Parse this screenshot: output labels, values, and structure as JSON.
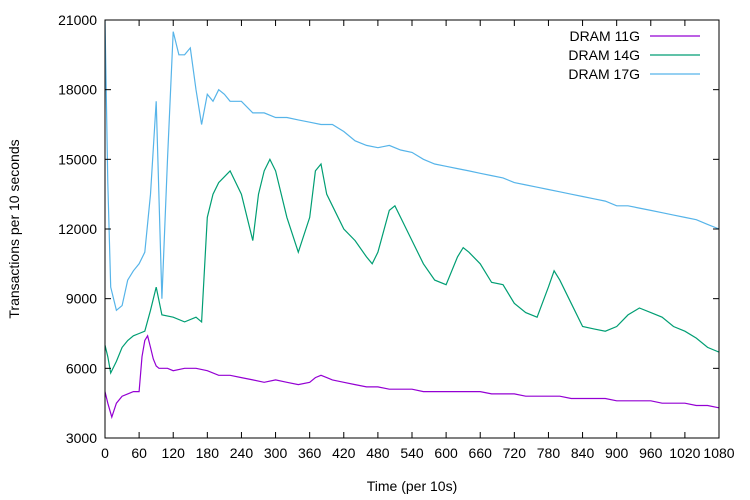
{
  "chart_data": {
    "type": "line",
    "xlabel": "Time (per 10s)",
    "ylabel": "Transactions per 10 seconds",
    "xlim": [
      0,
      1080
    ],
    "ylim": [
      3000,
      21000
    ],
    "xticks": [
      "0",
      "60",
      "120",
      "180",
      "240",
      "300",
      "360",
      "420",
      "480",
      "540",
      "600",
      "660",
      "720",
      "780",
      "840",
      "900",
      "960",
      "1020",
      "1080"
    ],
    "yticks": [
      "3000",
      "6000",
      "9000",
      "12000",
      "15000",
      "18000",
      "21000"
    ],
    "grid": false,
    "legend_position": "top-right",
    "series": [
      {
        "name": "DRAM 11G",
        "color": "#9400d3",
        "x": [
          0,
          5,
          12,
          20,
          30,
          40,
          50,
          60,
          65,
          70,
          75,
          80,
          85,
          90,
          95,
          100,
          110,
          120,
          140,
          160,
          180,
          200,
          220,
          240,
          260,
          280,
          300,
          320,
          340,
          360,
          370,
          380,
          390,
          400,
          420,
          440,
          460,
          480,
          500,
          520,
          540,
          560,
          580,
          600,
          620,
          640,
          660,
          680,
          700,
          720,
          740,
          760,
          780,
          800,
          820,
          840,
          860,
          880,
          900,
          920,
          940,
          960,
          980,
          1000,
          1020,
          1040,
          1060,
          1080
        ],
        "values": [
          5000,
          4500,
          3900,
          4500,
          4800,
          4900,
          5000,
          5000,
          6500,
          7200,
          7400,
          6900,
          6400,
          6100,
          6000,
          6000,
          6000,
          5900,
          6000,
          6000,
          5900,
          5700,
          5700,
          5600,
          5500,
          5400,
          5500,
          5400,
          5300,
          5400,
          5600,
          5700,
          5600,
          5500,
          5400,
          5300,
          5200,
          5200,
          5100,
          5100,
          5100,
          5000,
          5000,
          5000,
          5000,
          5000,
          5000,
          4900,
          4900,
          4900,
          4800,
          4800,
          4800,
          4800,
          4700,
          4700,
          4700,
          4700,
          4600,
          4600,
          4600,
          4600,
          4500,
          4500,
          4500,
          4400,
          4400,
          4300
        ]
      },
      {
        "name": "DRAM 14G",
        "color": "#009e73",
        "x": [
          0,
          5,
          10,
          20,
          30,
          40,
          50,
          60,
          70,
          80,
          90,
          100,
          120,
          140,
          160,
          170,
          180,
          190,
          200,
          220,
          240,
          260,
          270,
          280,
          290,
          300,
          320,
          340,
          360,
          370,
          380,
          390,
          400,
          420,
          440,
          460,
          470,
          480,
          500,
          510,
          520,
          540,
          560,
          580,
          600,
          620,
          630,
          640,
          660,
          680,
          700,
          720,
          740,
          760,
          780,
          790,
          800,
          820,
          840,
          860,
          880,
          900,
          920,
          940,
          960,
          980,
          1000,
          1020,
          1040,
          1060,
          1080
        ],
        "values": [
          7000,
          6500,
          5800,
          6300,
          6900,
          7200,
          7400,
          7500,
          7600,
          8500,
          9500,
          8300,
          8200,
          8000,
          8200,
          8000,
          12500,
          13500,
          14000,
          14500,
          13500,
          11500,
          13500,
          14500,
          15000,
          14500,
          12500,
          11000,
          12500,
          14500,
          14800,
          13500,
          13000,
          12000,
          11500,
          10800,
          10500,
          11000,
          12800,
          13000,
          12500,
          11500,
          10500,
          9800,
          9600,
          10800,
          11200,
          11000,
          10500,
          9700,
          9600,
          8800,
          8400,
          8200,
          9500,
          10200,
          9800,
          8800,
          7800,
          7700,
          7600,
          7800,
          8300,
          8600,
          8400,
          8200,
          7800,
          7600,
          7300,
          6900,
          6700
        ]
      },
      {
        "name": "DRAM 17G",
        "color": "#56b4e9",
        "x": [
          0,
          5,
          10,
          20,
          30,
          40,
          50,
          60,
          70,
          80,
          90,
          100,
          110,
          120,
          130,
          140,
          150,
          160,
          170,
          180,
          190,
          200,
          210,
          220,
          240,
          260,
          280,
          300,
          320,
          340,
          360,
          380,
          400,
          420,
          440,
          460,
          480,
          500,
          520,
          540,
          560,
          580,
          600,
          620,
          640,
          660,
          680,
          700,
          720,
          740,
          760,
          780,
          800,
          820,
          840,
          860,
          880,
          900,
          920,
          940,
          960,
          980,
          1000,
          1020,
          1040,
          1060,
          1080
        ],
        "values": [
          21000,
          14000,
          9500,
          8500,
          8700,
          9800,
          10200,
          10500,
          11000,
          13500,
          17500,
          9000,
          15000,
          20500,
          19500,
          19500,
          19800,
          18000,
          16500,
          17800,
          17500,
          18000,
          17800,
          17500,
          17500,
          17000,
          17000,
          16800,
          16800,
          16700,
          16600,
          16500,
          16500,
          16200,
          15800,
          15600,
          15500,
          15600,
          15400,
          15300,
          15000,
          14800,
          14700,
          14600,
          14500,
          14400,
          14300,
          14200,
          14000,
          13900,
          13800,
          13700,
          13600,
          13500,
          13400,
          13300,
          13200,
          13000,
          13000,
          12900,
          12800,
          12700,
          12600,
          12500,
          12400,
          12200,
          12000
        ]
      }
    ]
  }
}
